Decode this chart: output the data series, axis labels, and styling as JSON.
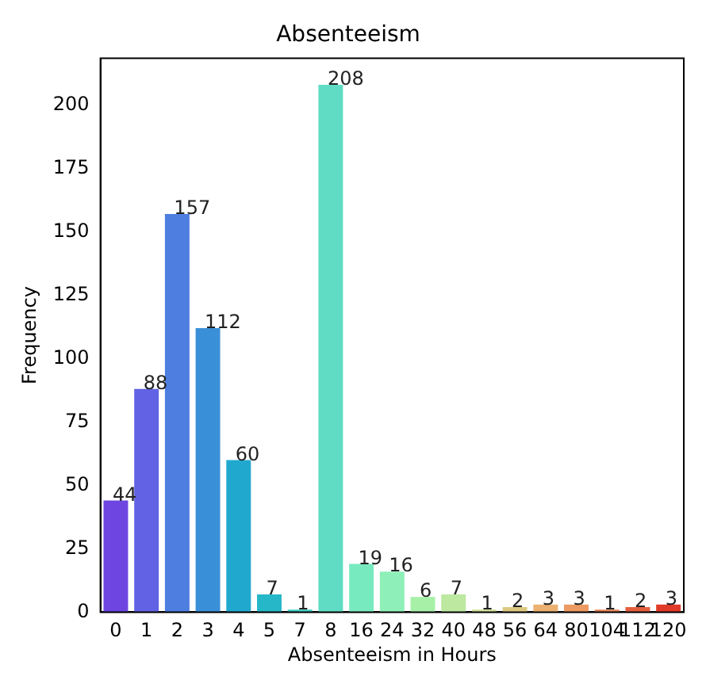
{
  "chart_data": {
    "type": "bar",
    "title": "Absenteeism",
    "xlabel": "Absenteeism in Hours",
    "ylabel": "Frequency",
    "categories": [
      "0",
      "1",
      "2",
      "3",
      "4",
      "5",
      "7",
      "8",
      "16",
      "24",
      "32",
      "40",
      "48",
      "56",
      "64",
      "80",
      "104",
      "112",
      "120"
    ],
    "values": [
      44,
      88,
      157,
      112,
      60,
      7,
      1,
      208,
      19,
      16,
      6,
      7,
      1,
      2,
      3,
      3,
      1,
      2,
      3
    ],
    "colors": [
      "#6e45e0",
      "#6262e4",
      "#4d7ee0",
      "#3a90d8",
      "#20a8cf",
      "#26b8c8",
      "#3ac8c0",
      "#60dcc4",
      "#78eac0",
      "#8ef0b8",
      "#a6f0a8",
      "#bce8a0",
      "#cede94",
      "#dcc880",
      "#ecb070",
      "#ec9a60",
      "#e87e50",
      "#e45e40",
      "#e03a28"
    ],
    "ylim": [
      0,
      218.4
    ],
    "yticks": [
      0,
      25,
      50,
      75,
      100,
      125,
      150,
      175,
      200
    ],
    "grid": false,
    "legend": false,
    "data_labels": true
  }
}
